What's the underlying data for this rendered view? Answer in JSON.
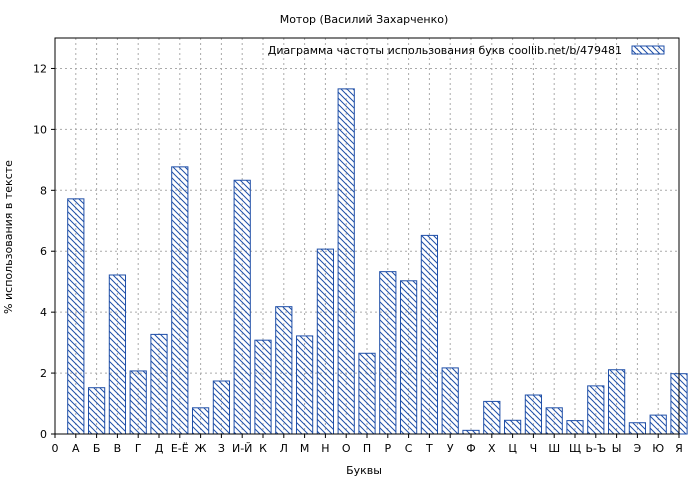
{
  "chart_data": {
    "type": "bar",
    "title": "Мотор (Василий Захарченко)",
    "xlabel": "Буквы",
    "ylabel": "% использования в тексте",
    "legend": {
      "label": "Диаграмма частоты использования букв  coollib.net/b/479481",
      "placement": "top-right"
    },
    "x_ticks": [
      "0",
      "А",
      "Б",
      "В",
      "Г",
      "Д",
      "Е-Ё",
      "Ж",
      "З",
      "И-Й",
      "К",
      "Л",
      "М",
      "Н",
      "О",
      "П",
      "Р",
      "С",
      "Т",
      "У",
      "Ф",
      "Х",
      "Ц",
      "Ч",
      "Ш",
      "Щ",
      "Ь-Ъ",
      "Ы",
      "Э",
      "Ю",
      "Я"
    ],
    "categories": [
      "А",
      "Б",
      "В",
      "Г",
      "Д",
      "Е-Ё",
      "Ж",
      "З",
      "И-Й",
      "К",
      "Л",
      "М",
      "Н",
      "О",
      "П",
      "Р",
      "С",
      "Т",
      "У",
      "Ф",
      "Х",
      "Ц",
      "Ч",
      "Ш",
      "Щ",
      "Ь-Ъ",
      "Ы",
      "Э",
      "Ю",
      "Я"
    ],
    "values": [
      7.72,
      1.52,
      5.22,
      2.07,
      3.27,
      8.77,
      0.86,
      1.74,
      8.33,
      3.08,
      4.18,
      3.22,
      6.07,
      11.33,
      2.65,
      5.33,
      5.03,
      6.52,
      2.17,
      0.12,
      1.07,
      0.45,
      1.28,
      0.86,
      0.44,
      1.58,
      2.11,
      0.37,
      0.62,
      1.98
    ],
    "ylim": [
      0,
      13
    ],
    "yticks": [
      0,
      2,
      4,
      6,
      8,
      10,
      12
    ],
    "grid": true,
    "colors": {
      "bar_stroke": "#1f4fa8",
      "grid": "#aaaaaa",
      "axis": "#000000"
    }
  }
}
